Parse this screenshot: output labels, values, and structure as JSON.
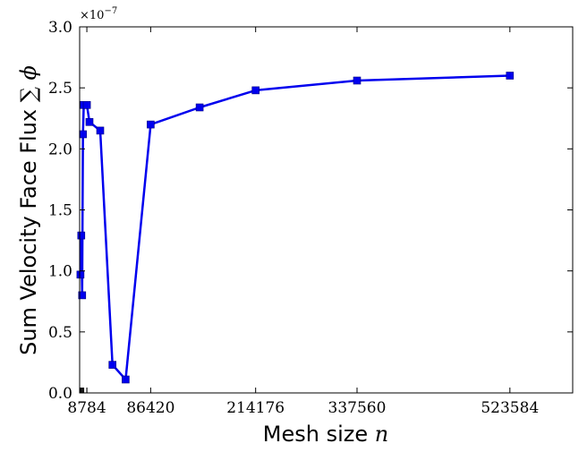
{
  "chart_data": {
    "type": "line",
    "xlabel_text": "Mesh size ",
    "xlabel_var": "n",
    "ylabel_text": "Sum Velocity Face Flux ",
    "ylabel_sym": "∑ ϕ",
    "y_scale_base": "×10",
    "y_scale_exp": "−7",
    "xlim": [
      0,
      600000
    ],
    "ylim": [
      0,
      3.0
    ],
    "x_ticks": [
      8784,
      86420,
      214176,
      337560,
      523584
    ],
    "x_tick_labels": [
      "8784",
      "86420",
      "214176",
      "337560",
      "523584"
    ],
    "y_ticks": [
      0.0,
      0.5,
      1.0,
      1.5,
      2.0,
      2.5,
      3.0
    ],
    "y_tick_labels": [
      "0.0",
      "0.5",
      "1.0",
      "1.5",
      "2.0",
      "2.5",
      "3.0"
    ],
    "line_color": "#0000ee",
    "marker_color": "#0000ee",
    "marker": "square",
    "grid": false,
    "series": [
      {
        "x": [
          1000,
          2000,
          3000,
          4000,
          5000,
          8784,
          12000,
          25000,
          40000,
          56000,
          86420,
          146000,
          214176,
          337560,
          523584
        ],
        "values": [
          0.97,
          1.29,
          0.8,
          2.12,
          2.36,
          2.36,
          2.22,
          2.15,
          0.23,
          0.11,
          2.2,
          2.34,
          2.48,
          2.56,
          2.6
        ]
      }
    ]
  }
}
